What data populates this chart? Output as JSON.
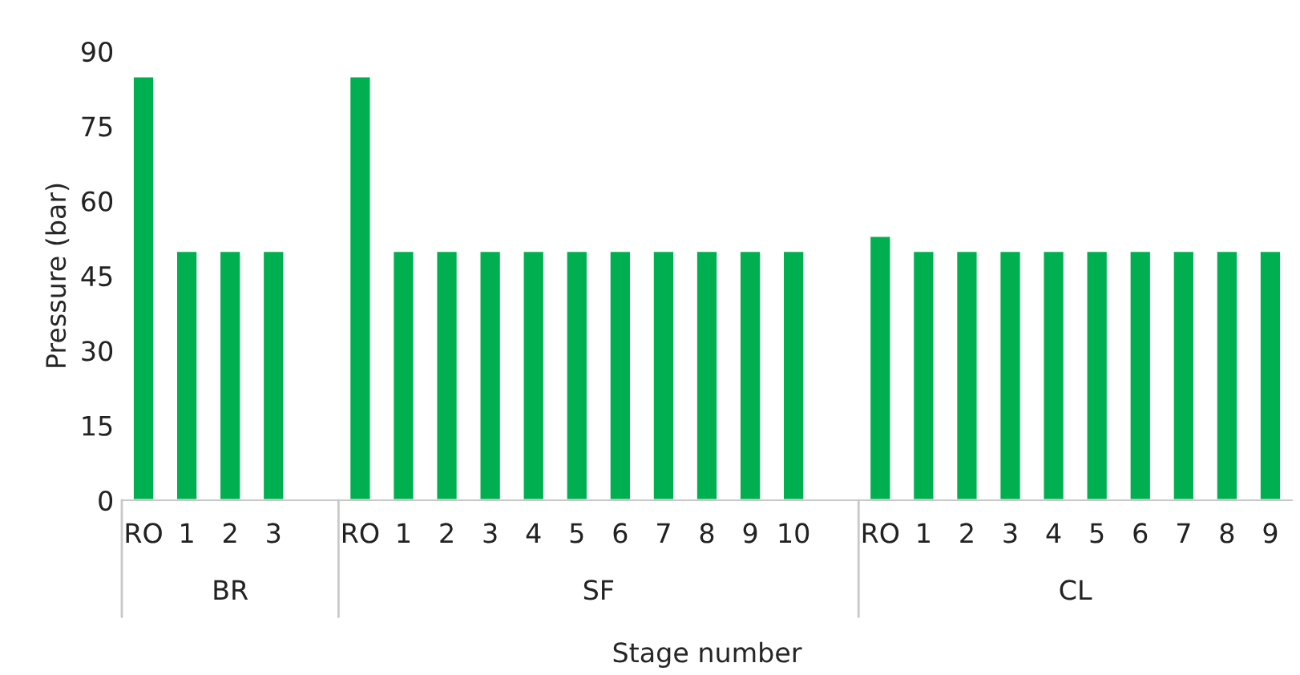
{
  "chart_data": {
    "type": "bar",
    "xlabel": "Stage number",
    "ylabel": "Pressure (bar)",
    "categories": [
      "RO",
      "1",
      "2",
      "3",
      null,
      "RO",
      "1",
      "2",
      "3",
      "4",
      "5",
      "6",
      "7",
      "8",
      "9",
      "10",
      null,
      "RO",
      "1",
      "2",
      "3",
      "4",
      "5",
      "6",
      "7",
      "8",
      "9"
    ],
    "values": [
      85,
      50,
      50,
      50,
      null,
      85,
      50,
      50,
      50,
      50,
      50,
      50,
      50,
      50,
      50,
      50,
      null,
      53,
      50,
      50,
      50,
      50,
      50,
      50,
      50,
      50,
      50
    ],
    "color": "#00b050",
    "annotations": [
      "BR",
      "SF",
      "CL"
    ],
    "ylim": [
      0,
      90
    ],
    "yticks": [
      0,
      15,
      30,
      45,
      60,
      75,
      90
    ],
    "grid": false,
    "legend": false
  }
}
